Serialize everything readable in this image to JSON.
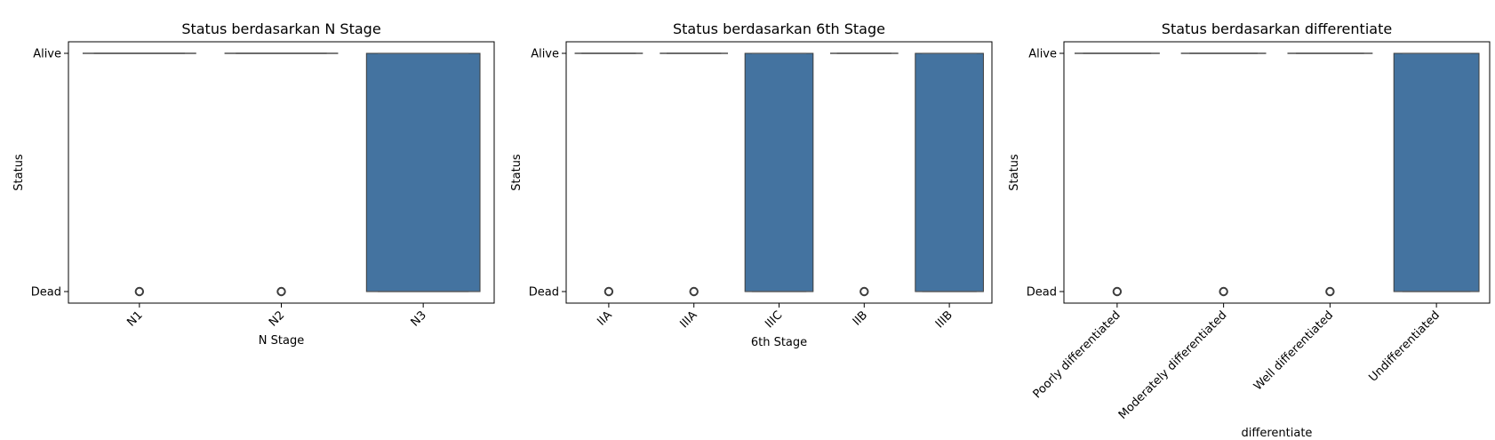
{
  "chart_data": [
    {
      "type": "box",
      "title": "Status berdasarkan N Stage",
      "xlabel": "N Stage",
      "ylabel": "Status",
      "y_categories": [
        "Alive",
        "Dead"
      ],
      "x_tick_rotation": 45,
      "categories": [
        "N1",
        "N2",
        "N3"
      ],
      "boxes": [
        {
          "category": "N1",
          "q1": "Alive",
          "median": "Alive",
          "q3": "Alive",
          "whisker_low": "Alive",
          "whisker_high": "Alive",
          "outliers": [
            "Dead"
          ]
        },
        {
          "category": "N2",
          "q1": "Alive",
          "median": "Alive",
          "q3": "Alive",
          "whisker_low": "Alive",
          "whisker_high": "Alive",
          "outliers": [
            "Dead"
          ]
        },
        {
          "category": "N3",
          "q1": "Alive",
          "median": "Dead",
          "q3": "Dead",
          "whisker_low": "Alive",
          "whisker_high": "Dead",
          "outliers": []
        }
      ],
      "color": "#4473A0"
    },
    {
      "type": "box",
      "title": "Status berdasarkan 6th Stage",
      "xlabel": "6th Stage",
      "ylabel": "Status",
      "y_categories": [
        "Alive",
        "Dead"
      ],
      "x_tick_rotation": 45,
      "categories": [
        "IIA",
        "IIIA",
        "IIIC",
        "IIB",
        "IIIB"
      ],
      "boxes": [
        {
          "category": "IIA",
          "q1": "Alive",
          "median": "Alive",
          "q3": "Alive",
          "whisker_low": "Alive",
          "whisker_high": "Alive",
          "outliers": [
            "Dead"
          ]
        },
        {
          "category": "IIIA",
          "q1": "Alive",
          "median": "Alive",
          "q3": "Alive",
          "whisker_low": "Alive",
          "whisker_high": "Alive",
          "outliers": [
            "Dead"
          ]
        },
        {
          "category": "IIIC",
          "q1": "Alive",
          "median": "Dead",
          "q3": "Dead",
          "whisker_low": "Alive",
          "whisker_high": "Dead",
          "outliers": []
        },
        {
          "category": "IIB",
          "q1": "Alive",
          "median": "Alive",
          "q3": "Alive",
          "whisker_low": "Alive",
          "whisker_high": "Alive",
          "outliers": [
            "Dead"
          ]
        },
        {
          "category": "IIIB",
          "q1": "Alive",
          "median": "Dead",
          "q3": "Dead",
          "whisker_low": "Alive",
          "whisker_high": "Dead",
          "outliers": []
        }
      ],
      "color": "#4473A0"
    },
    {
      "type": "box",
      "title": "Status berdasarkan differentiate",
      "xlabel": "differentiate",
      "ylabel": "Status",
      "y_categories": [
        "Alive",
        "Dead"
      ],
      "x_tick_rotation": 45,
      "categories": [
        "Poorly differentiated",
        "Moderately differentiated",
        "Well differentiated",
        "Undifferentiated"
      ],
      "boxes": [
        {
          "category": "Poorly differentiated",
          "q1": "Alive",
          "median": "Alive",
          "q3": "Alive",
          "whisker_low": "Alive",
          "whisker_high": "Alive",
          "outliers": [
            "Dead"
          ]
        },
        {
          "category": "Moderately differentiated",
          "q1": "Alive",
          "median": "Alive",
          "q3": "Alive",
          "whisker_low": "Alive",
          "whisker_high": "Alive",
          "outliers": [
            "Dead"
          ]
        },
        {
          "category": "Well differentiated",
          "q1": "Alive",
          "median": "Alive",
          "q3": "Alive",
          "whisker_low": "Alive",
          "whisker_high": "Alive",
          "outliers": [
            "Dead"
          ]
        },
        {
          "category": "Undifferentiated",
          "q1": "Alive",
          "median": "Dead",
          "q3": "Dead",
          "whisker_low": "Alive",
          "whisker_high": "Dead",
          "outliers": []
        }
      ],
      "color": "#4473A0"
    }
  ]
}
